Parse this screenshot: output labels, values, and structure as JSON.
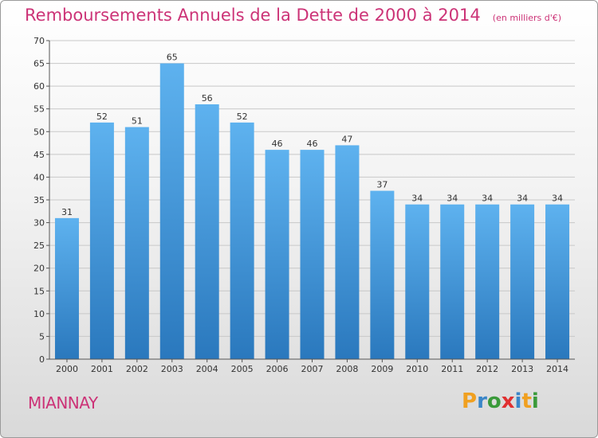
{
  "chart_data": {
    "type": "bar",
    "title": "Remboursements Annuels de la Dette de 2000 à 2014",
    "unit": "(en milliers d'€)",
    "xlabel": "",
    "ylabel": "",
    "categories": [
      "2000",
      "2001",
      "2002",
      "2003",
      "2004",
      "2005",
      "2006",
      "2007",
      "2008",
      "2009",
      "2010",
      "2011",
      "2012",
      "2013",
      "2014"
    ],
    "values": [
      31,
      52,
      51,
      65,
      56,
      52,
      46,
      46,
      47,
      37,
      34,
      34,
      34,
      34,
      34
    ],
    "data_labels": [
      "31",
      "52",
      "51",
      "65",
      "56",
      "52",
      "46",
      "46",
      "47",
      "37",
      "34",
      "34",
      "34",
      "34",
      "34"
    ],
    "ylim": [
      0,
      70
    ],
    "yticks": [
      0,
      5,
      10,
      15,
      20,
      25,
      30,
      35,
      40,
      45,
      50,
      55,
      60,
      65,
      70
    ],
    "grid": true,
    "legend": "none",
    "colors": {
      "bar_top": "#5eb2ef",
      "bar_bottom": "#2a78bd",
      "title": "#cc3377",
      "grid": "#c8c8c8",
      "axis": "#555555"
    }
  },
  "footer": {
    "commune": "MIANNAY"
  },
  "logo": {
    "text": "Proxiti",
    "letters": [
      "P",
      "r",
      "o",
      "x",
      "i",
      "t",
      "i"
    ],
    "letter_colors": [
      "#f0a020",
      "#3a86c8",
      "#3a9a3a",
      "#e03030",
      "#3a86c8",
      "#f0a020",
      "#3a9a3a"
    ]
  }
}
